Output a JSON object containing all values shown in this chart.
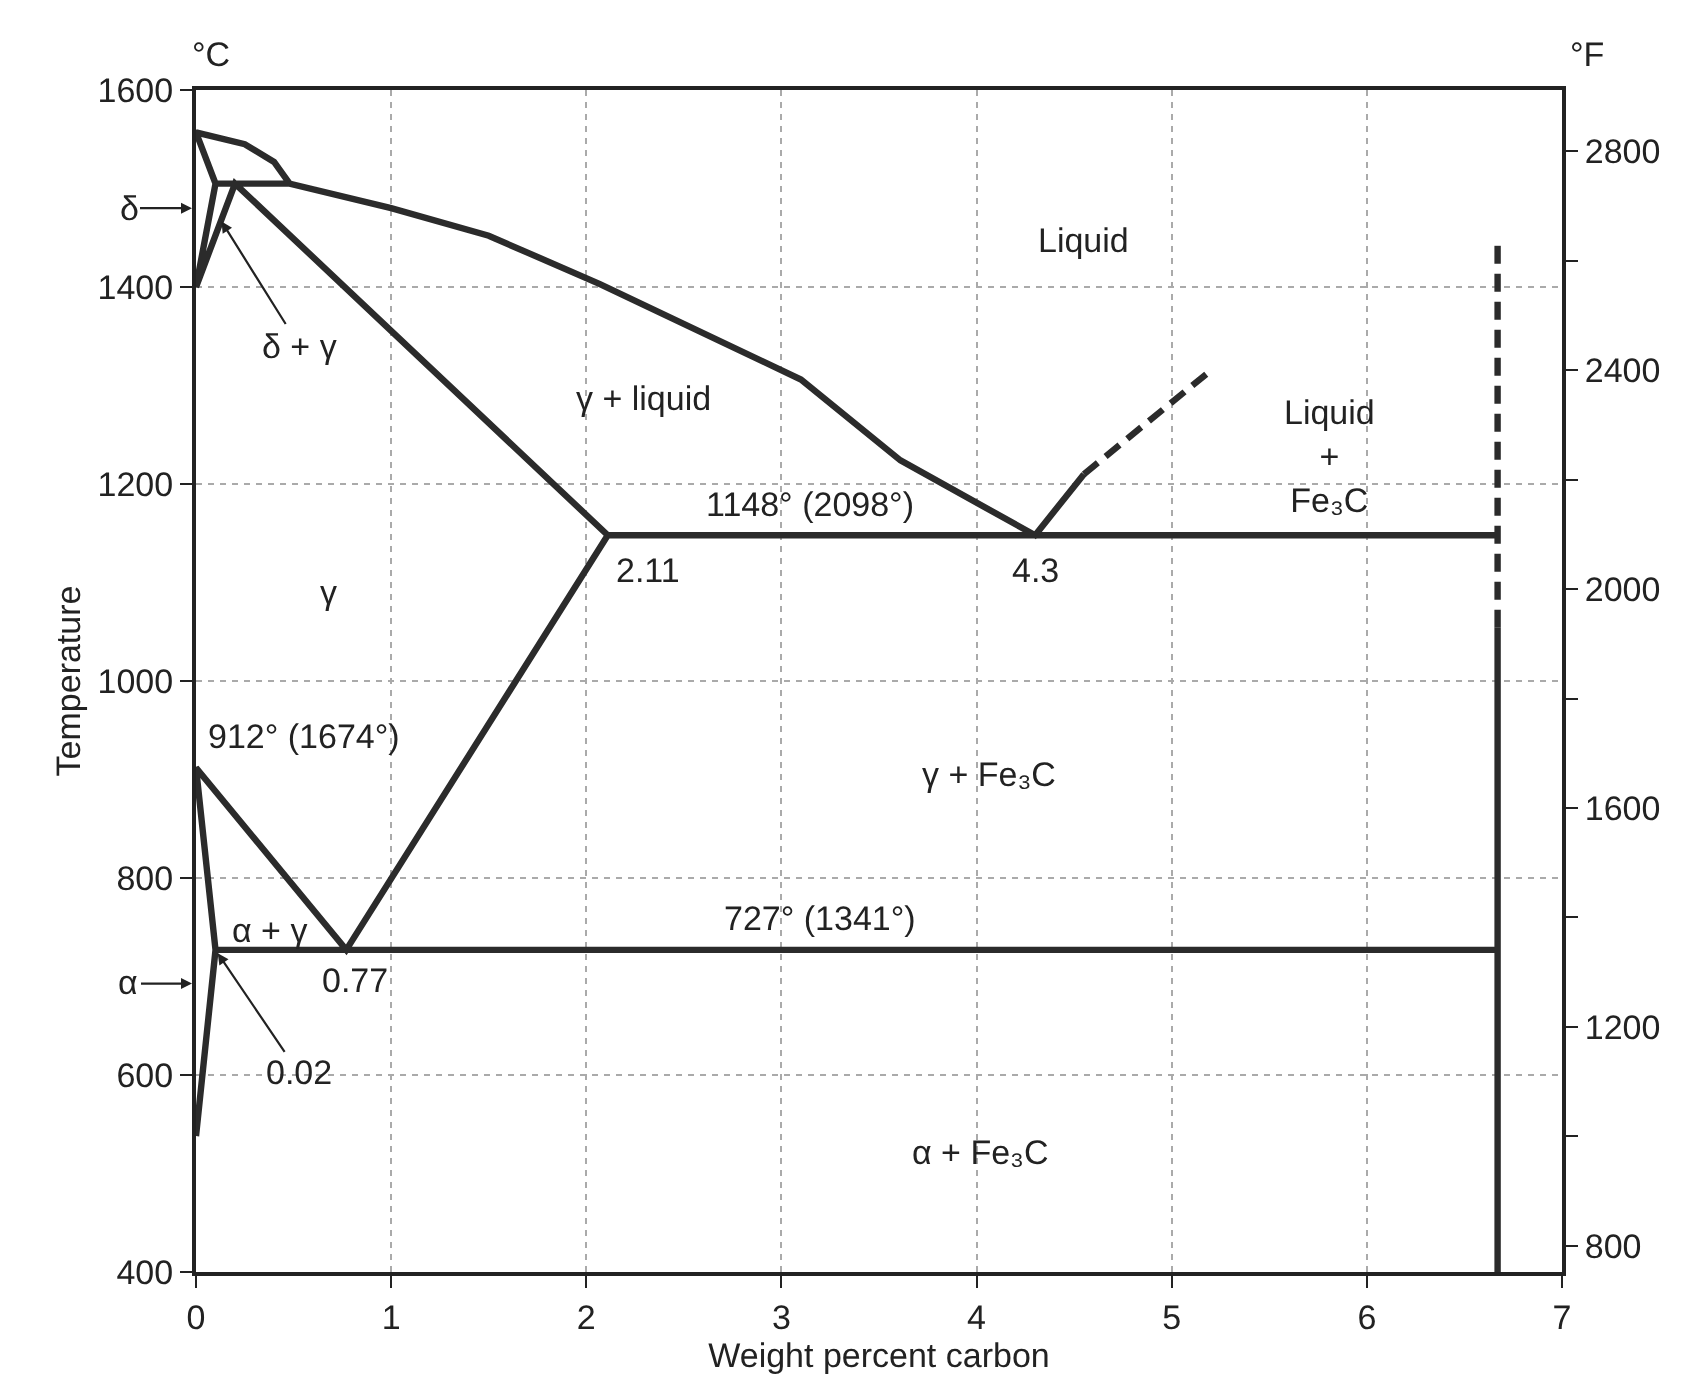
{
  "chart_data": {
    "type": "line",
    "xlabel": "Weight percent carbon",
    "ylabel": "Temperature",
    "y2label": "°F",
    "xlim": [
      0,
      7
    ],
    "xticks": [
      0,
      1,
      2,
      3,
      4,
      5,
      6,
      7
    ],
    "ylim": [
      400,
      1600
    ],
    "yticks": [
      400,
      600,
      800,
      1000,
      1200,
      1400,
      1600
    ],
    "y2lim": [
      752,
      2912
    ],
    "y2ticks": [
      800,
      {
        "value": 1000,
        "label": null
      },
      1200,
      {
        "value": 1400,
        "label": null
      },
      1600,
      {
        "value": 1800,
        "label": null
      },
      2000,
      {
        "value": 2200,
        "label": null
      },
      2400,
      {
        "value": 2600,
        "label": null
      },
      2800
    ],
    "grid": true,
    "marker": "none",
    "series": [
      {
        "color": "#2b2b2b",
        "x": [
          6.67,
          6.67,
          6.67,
          0.1,
          0,
          0.1,
          0,
          0.77,
          2.11,
          0.2,
          0,
          0.1,
          0,
          0.25,
          0.4,
          0.48,
          0.1,
          0.48,
          1,
          1.5,
          2.07,
          3.1,
          3.61,
          4.3,
          4.55,
          4.3,
          2.11,
          6.67
        ],
        "values": [
          1054,
          400,
          727,
          727,
          538,
          727,
          912,
          727,
          1148,
          1505,
          1400,
          1505,
          1557,
          1545,
          1527,
          1505,
          1505,
          1505,
          1480,
          1452,
          1403,
          1306,
          1224,
          1148,
          1210,
          1148,
          1148,
          1148
        ]
      },
      {
        "color": "#2b2b2b",
        "line_style": "dashed",
        "x": [
          4.55,
          5.18
        ],
        "values": [
          1210,
          1312
        ]
      },
      {
        "color": "#2b2b2b",
        "line_style": "dashed",
        "x": [
          6.67,
          6.67
        ],
        "values": [
          1054,
          1442
        ]
      }
    ],
    "annotations": [
      "°C",
      "Liquid",
      "Liquid\n+\nFe₃C",
      "γ + liquid",
      {
        "text": "δ + γ",
        "x": 0.12,
        "y": 1470
      },
      "δ",
      "γ",
      {
        "text": "1148° (2098°)",
        "x": 3.15,
        "y": 1148
      },
      {
        "text": "2.11",
        "x": 2.11,
        "y": 1148
      },
      {
        "text": "4.3",
        "x": 4.3,
        "y": 1148
      },
      {
        "text": "912° (1674°)",
        "x": 0,
        "y": 912
      },
      "γ + Fe₃C",
      "α + γ",
      {
        "text": "727° (1341°)",
        "x": 3.2,
        "y": 727
      },
      {
        "text": "0.77",
        "x": 0.77,
        "y": 727
      },
      "α",
      {
        "text": "0.02",
        "x": 0.1,
        "y": 727
      },
      "α + Fe₃C"
    ]
  }
}
